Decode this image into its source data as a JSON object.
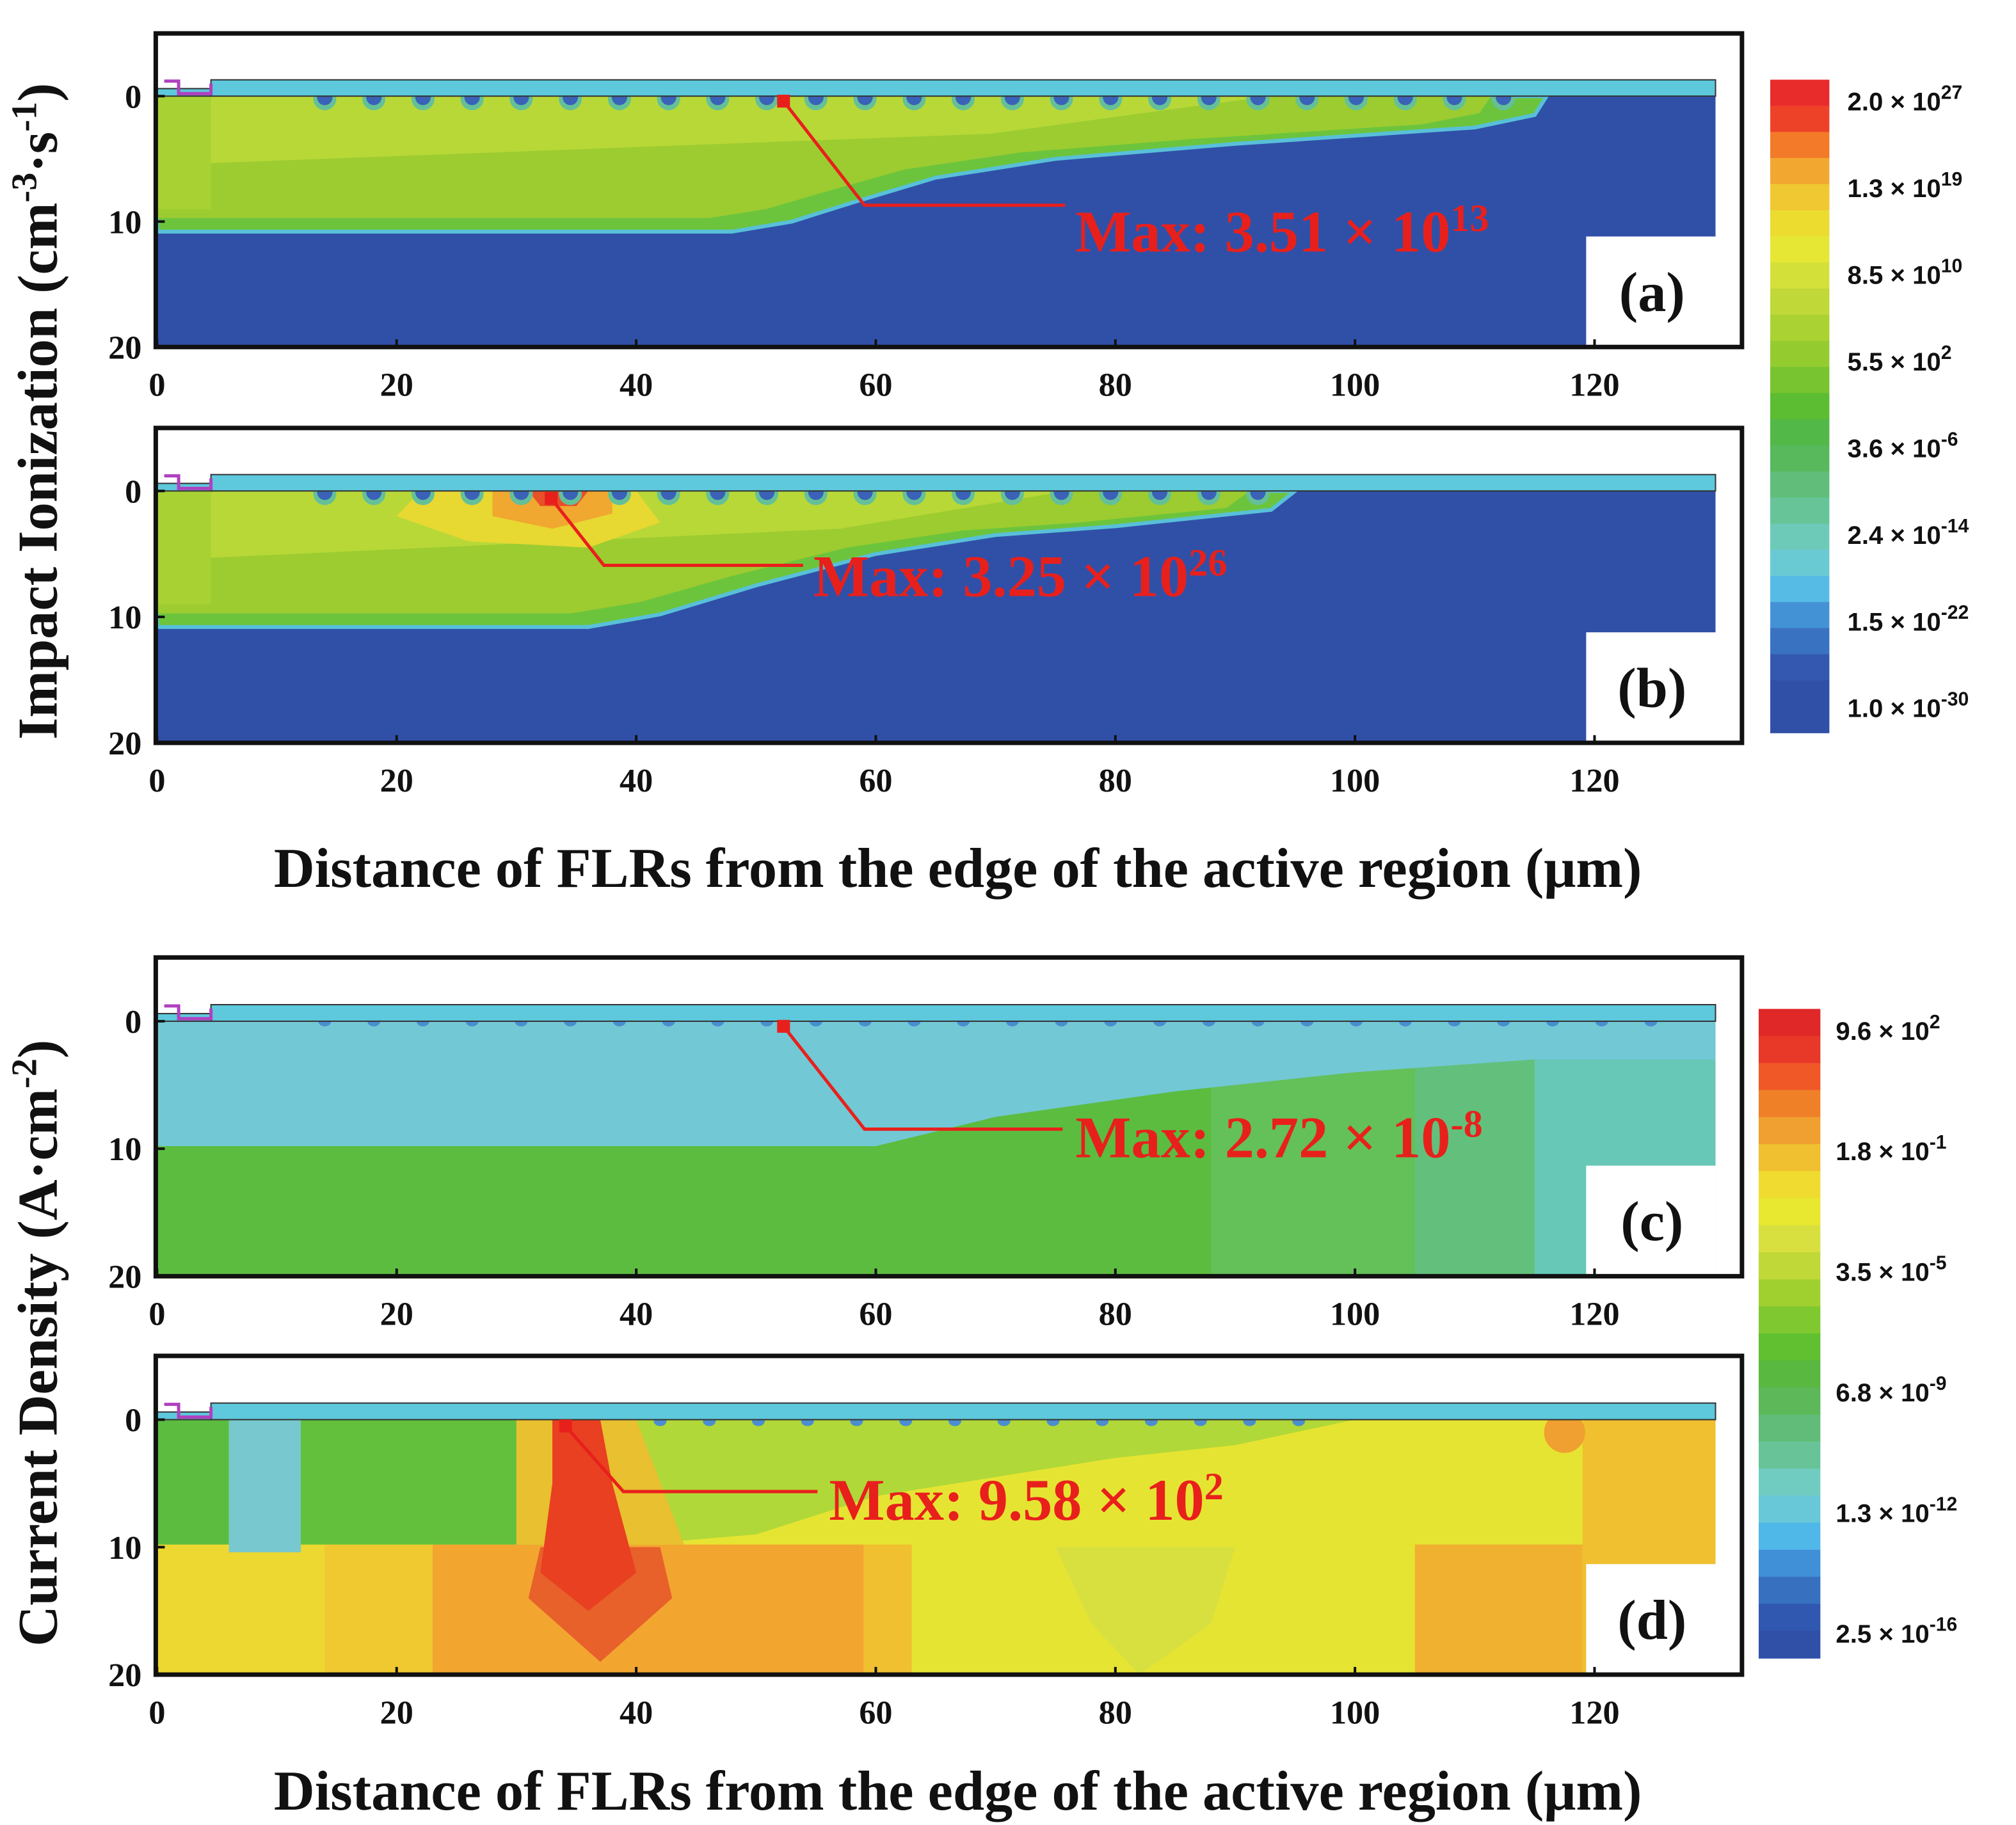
{
  "chart_data": [
    {
      "type": "contour",
      "panel_label": "(a)",
      "max_label": "Max: 3.51 × 10",
      "max_exponent": "13",
      "max_point": {
        "x": 52.3,
        "y": 0.4
      },
      "xlim": [
        0,
        132.2
      ],
      "ylim": [
        20,
        -5
      ],
      "xticks": [
        0,
        20,
        40,
        60,
        80,
        100,
        120
      ],
      "yticks": [
        0,
        10,
        20
      ]
    },
    {
      "type": "contour",
      "panel_label": "(b)",
      "max_label": "Max: 3.25 × 10",
      "max_exponent": "26",
      "max_point": {
        "x": 32.9,
        "y": 0.6
      },
      "xlim": [
        0,
        132.2
      ],
      "ylim": [
        20,
        -5
      ],
      "xticks": [
        0,
        20,
        40,
        60,
        80,
        100,
        120
      ],
      "yticks": [
        0,
        10,
        20
      ]
    },
    {
      "type": "contour",
      "panel_label": "(c)",
      "max_label": "Max: 2.72 × 10",
      "max_exponent": "-8",
      "max_point": {
        "x": 52.3,
        "y": 0.4
      },
      "xlim": [
        0,
        132.2
      ],
      "ylim": [
        20,
        -5
      ],
      "xticks": [
        0,
        20,
        40,
        60,
        80,
        100,
        120
      ],
      "yticks": [
        0,
        10,
        20
      ]
    },
    {
      "type": "contour",
      "panel_label": "(d)",
      "max_label": "Max: 9.58 × 10",
      "max_exponent": "2",
      "max_point": {
        "x": 34.1,
        "y": 0.5
      },
      "xlim": [
        0,
        132.2
      ],
      "ylim": [
        20,
        -5
      ],
      "xticks": [
        0,
        20,
        40,
        60,
        80,
        100,
        120
      ],
      "yticks": [
        0,
        10,
        20
      ]
    }
  ],
  "groups": [
    {
      "ylabel": [
        "Impact Ionization (cm",
        "-3",
        "·s",
        "-1",
        ")"
      ],
      "xlabel": "Distance of FLRs from the edge of the active region (μm)",
      "colorbar": {
        "colors": [
          "#e82c2c",
          "#ee4228",
          "#f27a28",
          "#f2a830",
          "#f0c832",
          "#ecdc30",
          "#e6e634",
          "#d4e03a",
          "#c0d838",
          "#aad232",
          "#94cc30",
          "#78c430",
          "#5cbc32",
          "#52b848",
          "#58b85c",
          "#60be7a",
          "#66c498",
          "#6ecab8",
          "#6acad4",
          "#56bce6",
          "#4492d6",
          "#3a72c2",
          "#3458b0",
          "#3050a8",
          "#3050a8"
        ],
        "labels": [
          {
            "text": "2.0 × 10",
            "exp": "27"
          },
          {
            "text": "1.3 × 10",
            "exp": "19"
          },
          {
            "text": "8.5 × 10",
            "exp": "10"
          },
          {
            "text": "5.5 × 10",
            "exp": "2"
          },
          {
            "text": "3.6 × 10",
            "exp": "-6"
          },
          {
            "text": "2.4 × 10",
            "exp": "-14"
          },
          {
            "text": "1.5 × 10",
            "exp": "-22"
          },
          {
            "text": "1.0 × 10",
            "exp": "-30"
          }
        ]
      }
    },
    {
      "ylabel": [
        "Current Density (A·cm",
        "-2",
        ")"
      ],
      "xlabel": "Distance of FLRs from the edge of the active region (μm)",
      "colorbar": {
        "colors": [
          "#e02828",
          "#e83828",
          "#f05828",
          "#f08028",
          "#f0a030",
          "#f0c030",
          "#f0dc30",
          "#e8e830",
          "#d8e040",
          "#c0d838",
          "#a0d030",
          "#80c830",
          "#60c030",
          "#58b840",
          "#5cb858",
          "#60bc78",
          "#68c498",
          "#70ccc0",
          "#68c8d8",
          "#50b8e8",
          "#4090d8",
          "#3870c0",
          "#3058b0",
          "#3050a8"
        ],
        "labels": [
          {
            "text": "9.6 × 10",
            "exp": "2"
          },
          {
            "text": "1.8 × 10",
            "exp": "-1"
          },
          {
            "text": "3.5 × 10",
            "exp": "-5"
          },
          {
            "text": "6.8 × 10",
            "exp": "-9"
          },
          {
            "text": "1.3 × 10",
            "exp": "-12"
          },
          {
            "text": "2.5 × 10",
            "exp": "-16"
          }
        ]
      }
    }
  ]
}
